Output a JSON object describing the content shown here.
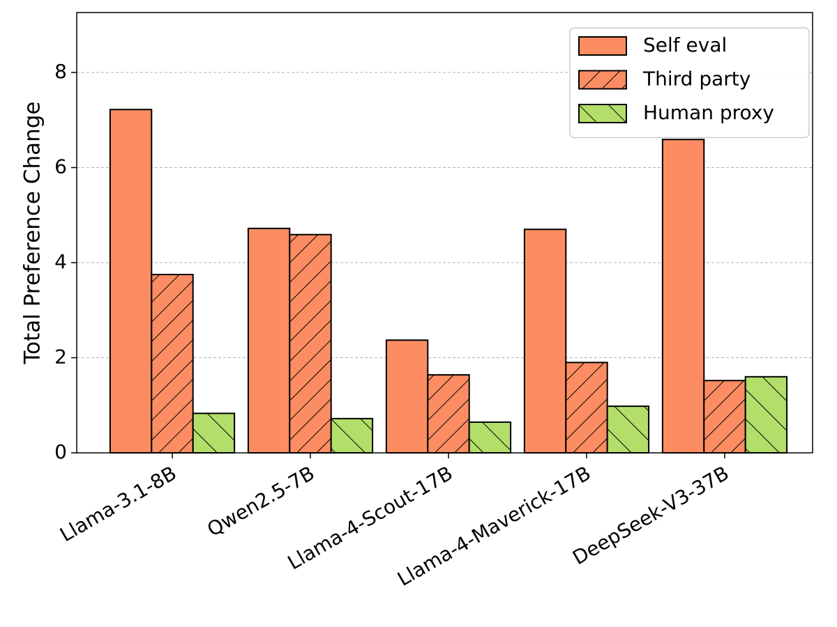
{
  "chart_data": {
    "type": "bar",
    "y_label": "Total Preference Change",
    "categories": [
      "Llama-3.1-8B",
      "Qwen2.5-7B",
      "Llama-4-Scout-17B",
      "Llama-4-Maverick-17B",
      "DeepSeek-V3-37B"
    ],
    "series": [
      {
        "name": "Self eval",
        "color": "#fc8d62",
        "hatch": "",
        "values": [
          7.22,
          4.72,
          2.37,
          4.7,
          6.59
        ]
      },
      {
        "name": "Third party",
        "color": "#fc8d62",
        "hatch": "//",
        "values": [
          3.75,
          4.59,
          1.64,
          1.9,
          1.52
        ]
      },
      {
        "name": "Human proxy",
        "color": "#b3de69",
        "hatch": "\\",
        "values": [
          0.83,
          0.72,
          0.645,
          0.98,
          1.6
        ]
      }
    ],
    "ylim": [
      0,
      9.26
    ],
    "yticks": [
      0,
      2,
      4,
      6,
      8
    ],
    "grid": true,
    "legend": "upper right"
  }
}
